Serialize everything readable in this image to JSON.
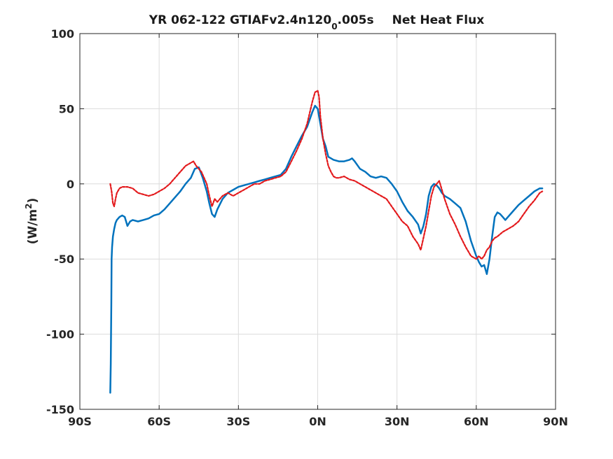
{
  "chart_data": {
    "type": "line",
    "title": "YR 062-122 GTIAFv2.4n120",
    "title_subscript": "0",
    "title_suffix": ".005s",
    "title_right": "Net Heat Flux",
    "ylabel_prefix": "(W/m",
    "ylabel_sup": "2",
    "ylabel_suffix": ")",
    "xlabel": "",
    "xlim": [
      -90,
      90
    ],
    "ylim": [
      -150,
      100
    ],
    "xticks": [
      -90,
      -60,
      -30,
      0,
      30,
      60,
      90
    ],
    "xtick_labels": [
      "90S",
      "60S",
      "30S",
      "0N",
      "30N",
      "60N",
      "90N"
    ],
    "yticks": [
      -150,
      -100,
      -50,
      0,
      50,
      100
    ],
    "ytick_labels": [
      "-150",
      "-100",
      "-50",
      "0",
      "50",
      "100"
    ],
    "grid": true,
    "series": [
      {
        "color": "#0072bd",
        "style": "solid",
        "x": [
          -78.5,
          -78.3,
          -78.1,
          -78.0,
          -77.8,
          -77.5,
          -77.0,
          -76.5,
          -76.0,
          -75.0,
          -74.0,
          -73.0,
          -72.0,
          -71.0,
          -70.0,
          -68.0,
          -66.0,
          -64.0,
          -62.0,
          -60.0,
          -58.0,
          -56.0,
          -54.0,
          -52.0,
          -50.0,
          -48.0,
          -46.5,
          -45.0,
          -43.5,
          -42.0,
          -41.0,
          -40.0,
          -39.0,
          -38.0,
          -36.0,
          -34.0,
          -32.0,
          -30.0,
          -28.0,
          -26.0,
          -24.0,
          -22.0,
          -20.0,
          -18.0,
          -16.0,
          -14.0,
          -12.0,
          -10.0,
          -8.0,
          -6.0,
          -4.0,
          -2.0,
          -1.0,
          0.0,
          1.0,
          2.0,
          3.0,
          4.0,
          6.0,
          8.0,
          10.0,
          12.0,
          13.0,
          14.0,
          16.0,
          18.0,
          20.0,
          22.0,
          24.0,
          26.0,
          28.0,
          30.0,
          32.0,
          34.0,
          36.0,
          38.0,
          39.0,
          40.0,
          41.0,
          42.0,
          43.0,
          44.0,
          45.0,
          46.0,
          47.0,
          48.0,
          50.0,
          52.0,
          54.0,
          56.0,
          58.0,
          60.0,
          61.0,
          62.0,
          63.0,
          64.0,
          65.0,
          66.0,
          67.0,
          68.0,
          69.0,
          70.0,
          71.0,
          72.0,
          74.0,
          76.0,
          78.0,
          80.0,
          82.0,
          84.0,
          85.0
        ],
        "y": [
          -139,
          -120,
          -80,
          -50,
          -42,
          -35,
          -30,
          -26,
          -24,
          -22,
          -21,
          -22,
          -28,
          -25,
          -24,
          -25,
          -24,
          -23,
          -21,
          -20,
          -17,
          -13,
          -9,
          -5,
          0,
          4,
          10,
          11,
          4,
          -5,
          -13,
          -20,
          -22,
          -17,
          -10,
          -6,
          -4,
          -2,
          -1,
          0,
          1,
          2,
          3,
          4,
          5,
          6,
          10,
          18,
          25,
          32,
          38,
          48,
          52,
          50,
          40,
          30,
          25,
          18,
          16,
          15,
          15,
          16,
          17,
          15,
          10,
          8,
          5,
          4,
          5,
          4,
          0,
          -5,
          -12,
          -18,
          -22,
          -27,
          -33,
          -28,
          -20,
          -8,
          -2,
          0,
          -1,
          -3,
          -6,
          -8,
          -10,
          -13,
          -16,
          -25,
          -38,
          -48,
          -52,
          -55,
          -54,
          -60,
          -50,
          -35,
          -22,
          -19,
          -20,
          -22,
          -24,
          -22,
          -18,
          -14,
          -11,
          -8,
          -5,
          -3,
          -3
        ]
      },
      {
        "color": "#e3191c",
        "style": "dashed",
        "x": [
          -78.5,
          -78.0,
          -77.5,
          -77.0,
          -76.5,
          -76.0,
          -75.0,
          -74.0,
          -72.0,
          -70.0,
          -68.0,
          -66.0,
          -64.0,
          -62.0,
          -60.0,
          -58.0,
          -56.0,
          -54.0,
          -52.0,
          -50.0,
          -48.0,
          -47.0,
          -46.0,
          -45.0,
          -44.0,
          -42.0,
          -41.0,
          -40.0,
          -39.0,
          -38.0,
          -36.0,
          -34.0,
          -32.0,
          -30.0,
          -28.0,
          -26.0,
          -24.0,
          -22.0,
          -20.0,
          -18.0,
          -16.0,
          -14.0,
          -12.0,
          -10.0,
          -8.0,
          -6.0,
          -4.0,
          -2.0,
          -1.0,
          0.0,
          0.5,
          1.0,
          2.0,
          3.0,
          4.0,
          5.0,
          6.0,
          7.0,
          8.0,
          10.0,
          12.0,
          14.0,
          16.0,
          18.0,
          20.0,
          22.0,
          24.0,
          26.0,
          28.0,
          30.0,
          32.0,
          34.0,
          36.0,
          38.0,
          39.0,
          40.0,
          41.0,
          42.0,
          43.0,
          44.0,
          45.0,
          46.0,
          47.0,
          48.0,
          50.0,
          52.0,
          54.0,
          56.0,
          58.0,
          60.0,
          61.0,
          62.0,
          63.0,
          64.0,
          65.0,
          66.0,
          67.0,
          68.0,
          70.0,
          72.0,
          74.0,
          76.0,
          78.0,
          80.0,
          82.0,
          84.0,
          85.0
        ],
        "y": [
          0,
          -5,
          -13,
          -15,
          -10,
          -6,
          -3,
          -2,
          -2,
          -3,
          -6,
          -7,
          -8,
          -7,
          -5,
          -3,
          0,
          4,
          8,
          12,
          14,
          15,
          12,
          10,
          8,
          0,
          -8,
          -15,
          -10,
          -12,
          -8,
          -6,
          -8,
          -6,
          -4,
          -2,
          0,
          0,
          2,
          3,
          4,
          5,
          8,
          15,
          22,
          30,
          40,
          55,
          61,
          62,
          58,
          45,
          30,
          20,
          12,
          8,
          5,
          4,
          4,
          5,
          3,
          2,
          0,
          -2,
          -4,
          -6,
          -8,
          -10,
          -15,
          -20,
          -25,
          -28,
          -35,
          -40,
          -44,
          -36,
          -28,
          -18,
          -8,
          -2,
          0,
          2,
          -4,
          -10,
          -20,
          -27,
          -35,
          -42,
          -48,
          -50,
          -48,
          -50,
          -48,
          -44,
          -42,
          -38,
          -36,
          -35,
          -32,
          -30,
          -28,
          -25,
          -20,
          -15,
          -11,
          -6,
          -5
        ]
      }
    ]
  }
}
